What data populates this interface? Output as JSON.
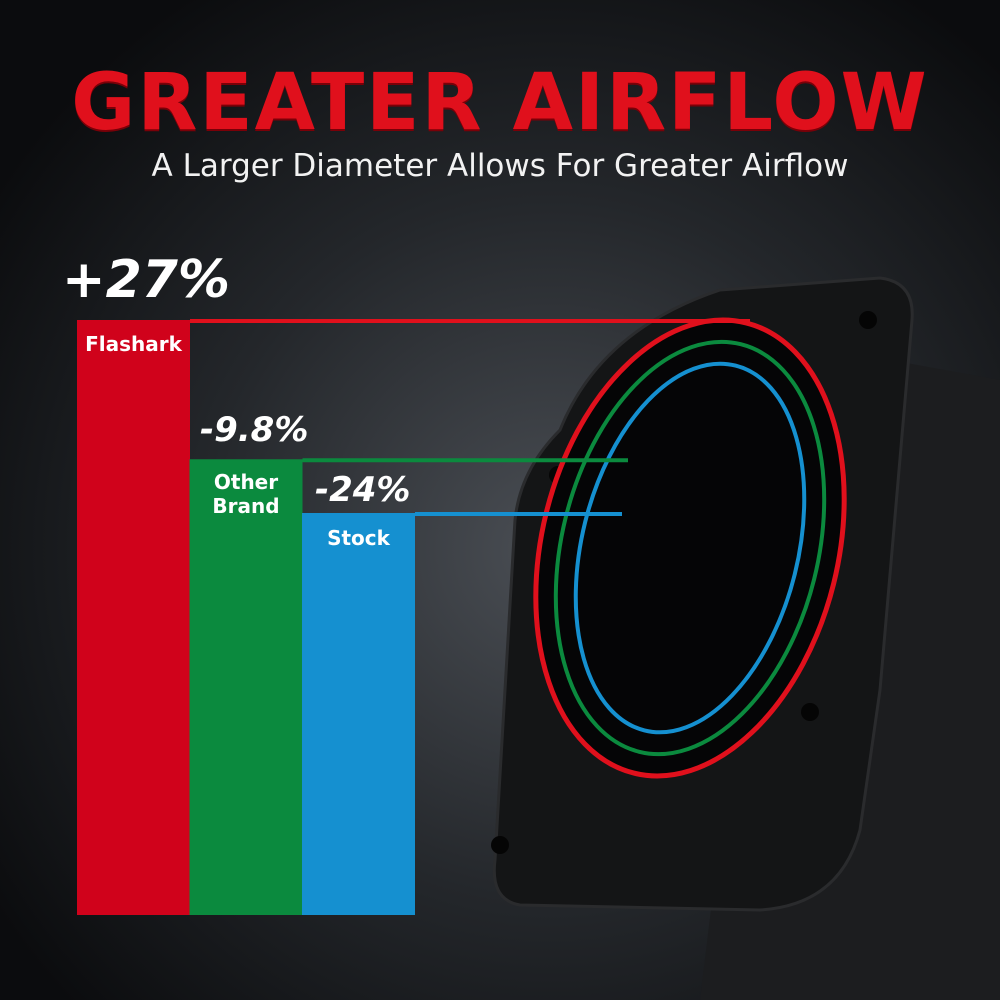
{
  "header": {
    "title": "GREATER AIRFLOW",
    "subtitle": "A Larger Diameter Allows For Greater Airflow"
  },
  "chart_data": {
    "type": "bar",
    "categories": [
      "Flashark",
      "Other Brand",
      "Stock"
    ],
    "values": [
      27,
      -9.8,
      -24
    ],
    "value_labels": [
      "+27%",
      "-9.8%",
      "-24%"
    ],
    "colors": [
      "#d0021b",
      "#0b8a3e",
      "#1590d0"
    ],
    "ylim": [
      -24,
      27
    ],
    "grid": false,
    "title": "GREATER AIRFLOW"
  }
}
